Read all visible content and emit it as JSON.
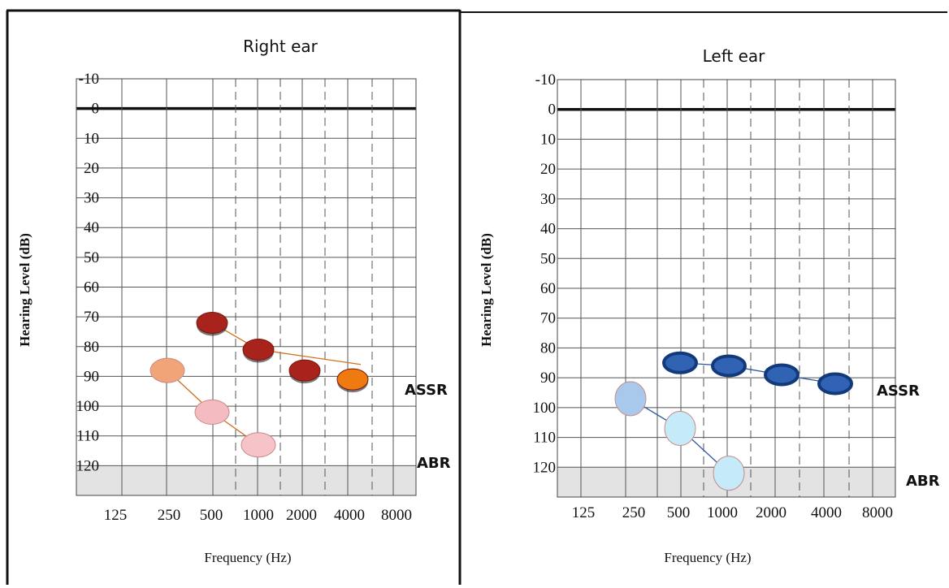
{
  "chart_data": [
    {
      "type": "scatter",
      "title": "Right ear",
      "xlabel": "Frequency (Hz)",
      "ylabel": "Hearing Level (dB)",
      "x_ticks": [
        "125",
        "250",
        "500",
        "1000",
        "2000",
        "4000",
        "8000"
      ],
      "y_ticks": [
        "-10",
        "0",
        "10",
        "20",
        "30",
        "40",
        "50",
        "60",
        "70",
        "80",
        "90",
        "100",
        "110",
        "120"
      ],
      "ylim": [
        -10,
        130
      ],
      "y_inverted": true,
      "shaded_region": [
        120,
        130
      ],
      "series": [
        {
          "name": "ASSR",
          "colors": [
            "#a8231c",
            "#a8231c",
            "#a8231c",
            "#ee7a10"
          ],
          "points": [
            {
              "x": 500,
              "y": 72
            },
            {
              "x": 1000,
              "y": 81
            },
            {
              "x": 2000,
              "y": 88
            },
            {
              "x": 4000,
              "y": 91
            }
          ]
        },
        {
          "name": "ABR",
          "colors": [
            "#f0a478",
            "#f4bcc0",
            "#f6c4c8"
          ],
          "points": [
            {
              "x": 250,
              "y": 88
            },
            {
              "x": 500,
              "y": 102
            },
            {
              "x": 1000,
              "y": 113
            }
          ]
        }
      ]
    },
    {
      "type": "scatter",
      "title": "Left ear",
      "xlabel": "Frequency (Hz)",
      "ylabel": "Hearing Level (dB)",
      "x_ticks": [
        "125",
        "250",
        "500",
        "1000",
        "2000",
        "4000",
        "8000"
      ],
      "y_ticks": [
        "-10",
        "0",
        "10",
        "20",
        "30",
        "40",
        "50",
        "60",
        "70",
        "80",
        "90",
        "100",
        "110",
        "120"
      ],
      "ylim": [
        -10,
        130
      ],
      "y_inverted": true,
      "shaded_region": [
        120,
        130
      ],
      "series": [
        {
          "name": "ASSR",
          "colors": [
            "#3063b4",
            "#3063b4",
            "#3063b4",
            "#3063b4"
          ],
          "points": [
            {
              "x": 500,
              "y": 85
            },
            {
              "x": 1000,
              "y": 86
            },
            {
              "x": 2000,
              "y": 89
            },
            {
              "x": 4000,
              "y": 92
            }
          ]
        },
        {
          "name": "ABR",
          "colors": [
            "#a9c9ec",
            "#c5eaf8",
            "#c5eaf8"
          ],
          "points": [
            {
              "x": 250,
              "y": 97
            },
            {
              "x": 500,
              "y": 107
            },
            {
              "x": 1000,
              "y": 122
            }
          ]
        }
      ]
    }
  ]
}
